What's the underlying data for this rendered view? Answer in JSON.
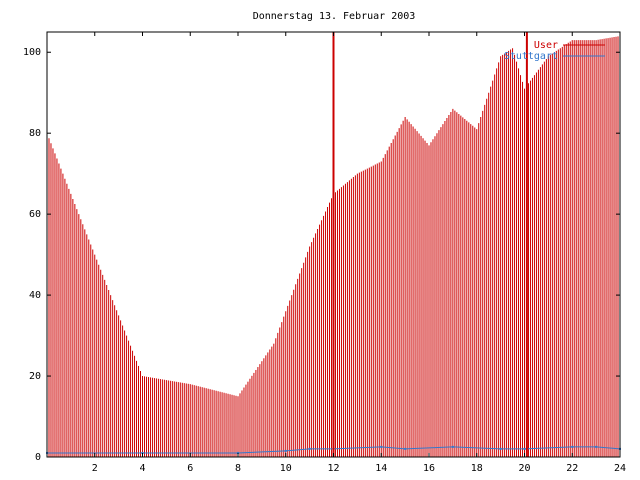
{
  "chart_data": {
    "type": "bar",
    "title": "Donnerstag 13. Februar 2003",
    "xlabel": "",
    "ylabel": "",
    "xlim": [
      0,
      24
    ],
    "ylim": [
      0,
      105
    ],
    "xticks": [
      2,
      4,
      6,
      8,
      10,
      12,
      14,
      16,
      18,
      20,
      22,
      24
    ],
    "yticks": [
      0,
      20,
      40,
      60,
      80,
      100
    ],
    "grid": false,
    "legend_position": "top-right",
    "series": [
      {
        "name": "User",
        "color": "#cc0000",
        "style": "impulses",
        "x": [
          0.0,
          4.0,
          6.0,
          8.0,
          9.5,
          11.0,
          12.0,
          13.0,
          14.0,
          15.0,
          16.0,
          17.0,
          18.0,
          19.0,
          19.5,
          20.0,
          21.0,
          22.0,
          23.0,
          24.0
        ],
        "values": [
          80,
          20,
          18,
          15,
          28,
          52,
          65,
          70,
          73,
          84,
          77,
          86,
          81,
          99,
          101,
          91,
          99,
          103,
          103,
          104
        ]
      },
      {
        "name": "Stuttgart",
        "color": "#3377cc",
        "style": "line",
        "x": [
          0.0,
          4.0,
          8.0,
          10.0,
          11.0,
          12.0,
          14.0,
          15.0,
          17.0,
          19.0,
          20.0,
          22.0,
          23.0,
          24.0
        ],
        "values": [
          1,
          1,
          1,
          1.5,
          2,
          2,
          2.5,
          2,
          2.5,
          2,
          2,
          2.5,
          2.5,
          2
        ]
      }
    ],
    "markers": [
      {
        "x": 12.0,
        "color": "#cc0000"
      },
      {
        "x": 20.1,
        "color": "#cc0000"
      }
    ]
  }
}
